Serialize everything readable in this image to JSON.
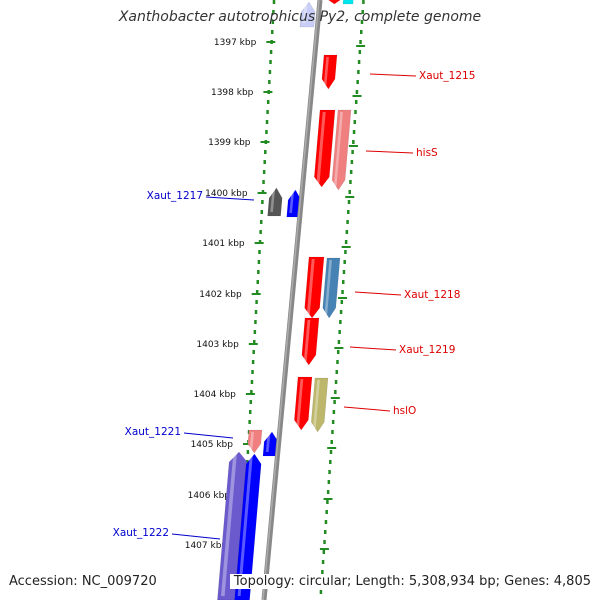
{
  "title": "Xanthobacter autotrophicus Py2, complete genome",
  "accession": "Accession: NC_009720",
  "summary": "Topology: circular; Length: 5,308,934 bp; Genes: 4,805",
  "colors": {
    "ruler": "#228B22",
    "backbone": "#888888",
    "label_red": "#dd0000",
    "label_blue": "#0000cc",
    "gene_red": "#ff0000",
    "gene_pink": "#f08080",
    "gene_blue": "#0000ff",
    "gene_steelblue": "#4682b4",
    "gene_gray": "#555555",
    "gene_olive": "#bdb76b",
    "gene_slateblue": "#6a5acd",
    "gene_cyan": "#00e5ee",
    "gene_lavender": "#c8cef8"
  },
  "ticks": [
    {
      "kbp": 1397,
      "label": "1397 kbp"
    },
    {
      "kbp": 1398,
      "label": "1398 kbp"
    },
    {
      "kbp": 1399,
      "label": "1399 kbp"
    },
    {
      "kbp": 1400,
      "label": "1400 kbp"
    },
    {
      "kbp": 1401,
      "label": "1401 kbp"
    },
    {
      "kbp": 1402,
      "label": "1402 kbp"
    },
    {
      "kbp": 1403,
      "label": "1403 kbp"
    },
    {
      "kbp": 1404,
      "label": "1404 kbp"
    },
    {
      "kbp": 1405,
      "label": "1405 kbp"
    },
    {
      "kbp": 1406,
      "label": "1406 kbp"
    },
    {
      "kbp": 1407,
      "label": "1407 kbp"
    }
  ],
  "gene_labels": [
    {
      "text": "Xaut_1215",
      "color": "label_red"
    },
    {
      "text": "hisS",
      "color": "label_red"
    },
    {
      "text": "Xaut_1217",
      "color": "label_blue"
    },
    {
      "text": "Xaut_1218",
      "color": "label_red"
    },
    {
      "text": "Xaut_1219",
      "color": "label_red"
    },
    {
      "text": "hslO",
      "color": "label_red"
    },
    {
      "text": "Xaut_1221",
      "color": "label_blue"
    },
    {
      "text": "Xaut_1222",
      "color": "label_blue"
    }
  ],
  "genes": [
    {
      "color": "gene_red",
      "strand": "down"
    },
    {
      "color": "gene_cyan",
      "strand": "up"
    },
    {
      "color": "gene_lavender",
      "strand": "up"
    },
    {
      "color": "gene_red",
      "strand": "down"
    },
    {
      "color": "gene_red",
      "strand": "down"
    },
    {
      "color": "gene_pink",
      "strand": "down"
    },
    {
      "color": "gene_gray",
      "strand": "up"
    },
    {
      "color": "gene_blue",
      "strand": "up"
    },
    {
      "color": "gene_red",
      "strand": "down"
    },
    {
      "color": "gene_steelblue",
      "strand": "down"
    },
    {
      "color": "gene_red",
      "strand": "down"
    },
    {
      "color": "gene_red",
      "strand": "down"
    },
    {
      "color": "gene_olive",
      "strand": "down"
    },
    {
      "color": "gene_pink",
      "strand": "down"
    },
    {
      "color": "gene_blue",
      "strand": "up"
    },
    {
      "color": "gene_slateblue",
      "strand": "up"
    },
    {
      "color": "gene_blue",
      "strand": "up"
    }
  ]
}
